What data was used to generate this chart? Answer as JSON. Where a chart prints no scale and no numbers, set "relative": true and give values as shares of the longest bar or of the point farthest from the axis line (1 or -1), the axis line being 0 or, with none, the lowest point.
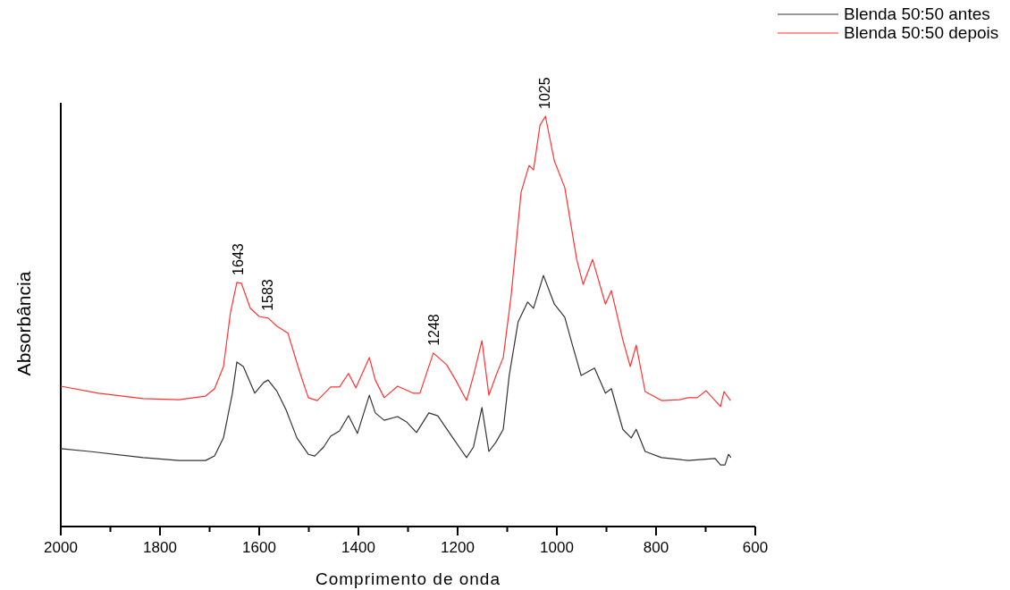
{
  "chart_data": {
    "type": "line",
    "relative": true,
    "xlabel": "Comprimento de onda",
    "ylabel": "Absorbância",
    "xlim": [
      2000,
      600
    ],
    "xticks": [
      2000,
      {
        "value": 1900,
        "label": null
      },
      1800,
      {
        "value": 1700,
        "label": null
      },
      1600,
      {
        "value": 1500,
        "label": null
      },
      1400,
      {
        "value": 1300,
        "label": null
      },
      1200,
      {
        "value": 1100,
        "label": null
      },
      1000,
      {
        "value": 900,
        "label": null
      },
      800,
      {
        "value": 700,
        "label": null
      },
      600
    ],
    "legend": "top right",
    "line_style": "solid",
    "marker": "none",
    "annotations": [
      {
        "text": "1643",
        "x": 1643,
        "y": 0.595
      },
      {
        "text": "1583",
        "x": 1583,
        "y": 0.508
      },
      {
        "text": "1248",
        "x": 1248,
        "y": 0.423
      },
      {
        "text": "1025",
        "x": 1025,
        "y": 1
      }
    ],
    "series": [
      {
        "name": "Blenda 50:50 antes",
        "color": "#333333",
        "x": [
          2000,
          1942,
          1834,
          1762,
          1708,
          1690,
          1672,
          1654,
          1645,
          1632,
          1609,
          1591,
          1582,
          1564,
          1546,
          1524,
          1501,
          1488,
          1470,
          1456,
          1438,
          1420,
          1402,
          1378,
          1366,
          1348,
          1321,
          1303,
          1283,
          1258,
          1240,
          1213,
          1182,
          1168,
          1151,
          1137,
          1123,
          1108,
          1096,
          1078,
          1059,
          1047,
          1027,
          1005,
          984,
          969,
          951,
          924,
          902,
          890,
          867,
          850,
          840,
          822,
          789,
          735,
          681,
          670,
          661,
          654,
          649
        ],
        "values": [
          0.19,
          0.183,
          0.168,
          0.161,
          0.161,
          0.172,
          0.216,
          0.325,
          0.401,
          0.39,
          0.325,
          0.351,
          0.357,
          0.329,
          0.285,
          0.216,
          0.176,
          0.172,
          0.194,
          0.22,
          0.233,
          0.27,
          0.227,
          0.32,
          0.277,
          0.259,
          0.268,
          0.255,
          0.229,
          0.277,
          0.27,
          0.222,
          0.168,
          0.194,
          0.29,
          0.183,
          0.205,
          0.237,
          0.368,
          0.499,
          0.547,
          0.532,
          0.612,
          0.542,
          0.51,
          0.444,
          0.368,
          0.386,
          0.325,
          0.336,
          0.237,
          0.216,
          0.237,
          0.183,
          0.168,
          0.161,
          0.166,
          0.15,
          0.15,
          0.176,
          0.168
        ]
      },
      {
        "name": "Blenda 50:50 depois",
        "color": "#ff3333",
        "x": [
          2000,
          1924,
          1834,
          1762,
          1708,
          1690,
          1672,
          1658,
          1645,
          1636,
          1618,
          1600,
          1582,
          1564,
          1542,
          1519,
          1501,
          1483,
          1456,
          1438,
          1420,
          1405,
          1378,
          1366,
          1348,
          1321,
          1290,
          1276,
          1249,
          1222,
          1204,
          1182,
          1168,
          1151,
          1137,
          1121,
          1108,
          1092,
          1072,
          1056,
          1047,
          1034,
          1023,
          1005,
          984,
          960,
          947,
          928,
          902,
          890,
          867,
          852,
          840,
          822,
          789,
          753,
          735,
          717,
          699,
          681,
          670,
          663,
          650
        ],
        "values": [
          0.342,
          0.325,
          0.312,
          0.309,
          0.318,
          0.336,
          0.39,
          0.521,
          0.595,
          0.593,
          0.532,
          0.512,
          0.508,
          0.488,
          0.471,
          0.379,
          0.314,
          0.307,
          0.34,
          0.34,
          0.373,
          0.338,
          0.412,
          0.357,
          0.314,
          0.342,
          0.325,
          0.325,
          0.423,
          0.394,
          0.357,
          0.307,
          0.368,
          0.453,
          0.32,
          0.373,
          0.412,
          0.564,
          0.815,
          0.88,
          0.869,
          0.978,
          1,
          0.891,
          0.826,
          0.651,
          0.59,
          0.651,
          0.542,
          0.575,
          0.455,
          0.39,
          0.442,
          0.329,
          0.307,
          0.309,
          0.314,
          0.314,
          0.331,
          0.307,
          0.292,
          0.329,
          0.307
        ]
      }
    ]
  }
}
